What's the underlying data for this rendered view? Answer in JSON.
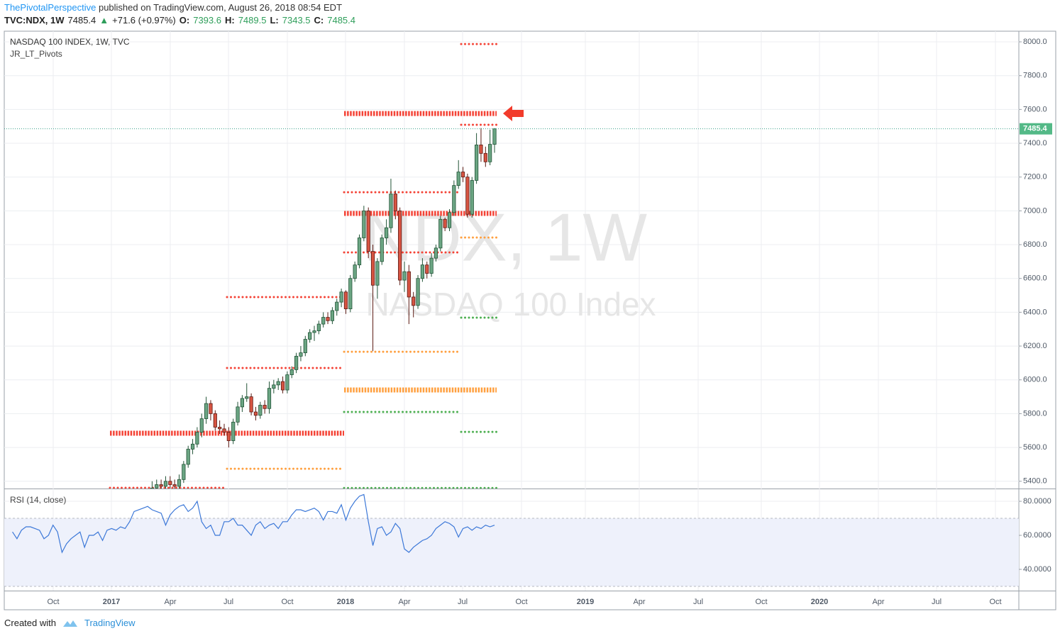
{
  "header": {
    "author": "ThePivotalPerspective",
    "published": "published on TradingView.com, August 26, 2018 08:54 EDT",
    "symbol": "TVC:NDX, 1W",
    "arrow": "▲",
    "change": "+71.6 (+0.97%)",
    "o_label": "O:",
    "h_label": "H:",
    "l_label": "L:",
    "c_label": "C:"
  },
  "footer": {
    "created": "Created with",
    "brand": "TradingView"
  },
  "chart_data": [
    {
      "type": "candlestick",
      "title": "NASDAQ 100 INDEX, 1W, TVC",
      "indicator": "JR_LT_Pivots",
      "watermark": "NDX, 1W",
      "watermark_subtitle": "NASDAQ 100 Index",
      "x_labels": [
        "Oct",
        "2017",
        "Apr",
        "Jul",
        "Oct",
        "2018",
        "Apr",
        "Jul",
        "Oct",
        "2019",
        "Apr",
        "Jul",
        "Oct",
        "2020",
        "Apr",
        "Jul",
        "Oct"
      ],
      "open": [
        5350,
        5360,
        5380,
        5370,
        5400,
        5380,
        5370,
        5410,
        5500,
        5590,
        5620,
        5690,
        5770,
        5860,
        5800,
        5720,
        5710,
        5690,
        5640,
        5750,
        5840,
        5890,
        5900,
        5810,
        5790,
        5850,
        5830,
        5950,
        5970,
        5990,
        5940,
        6030,
        6060,
        6140,
        6160,
        6240,
        6280,
        6290,
        6330,
        6370,
        6350,
        6410,
        6460,
        6520,
        6420,
        6600,
        6680,
        6840,
        7000,
        6760,
        6560,
        6700,
        6840,
        6900,
        7100,
        7000,
        6590,
        6640,
        6490,
        6440,
        6600,
        6680,
        6630,
        6720,
        6780,
        6950,
        6900,
        6990,
        7150,
        7230,
        7200,
        6980,
        7180,
        7390,
        7340,
        7290,
        7393.6
      ],
      "high": [
        5400,
        5410,
        5410,
        5430,
        5430,
        5410,
        5440,
        5520,
        5610,
        5650,
        5720,
        5800,
        5900,
        5880,
        5820,
        5760,
        5740,
        5720,
        5770,
        5870,
        5910,
        5980,
        5920,
        5840,
        5870,
        5880,
        5990,
        6000,
        6010,
        6020,
        6050,
        6080,
        6160,
        6200,
        6260,
        6300,
        6320,
        6350,
        6400,
        6400,
        6430,
        6480,
        6540,
        6530,
        6620,
        6700,
        6860,
        7030,
        7020,
        6800,
        6720,
        6860,
        6950,
        7190,
        7120,
        7020,
        6700,
        6680,
        6520,
        6620,
        6720,
        6700,
        6750,
        6800,
        6970,
        6960,
        7010,
        7180,
        7300,
        7260,
        7220,
        7200,
        7460,
        7490,
        7380,
        7480,
        7489.5
      ],
      "low": [
        5320,
        5330,
        5340,
        5340,
        5350,
        5340,
        5350,
        5390,
        5480,
        5560,
        5600,
        5660,
        5740,
        5760,
        5700,
        5680,
        5670,
        5600,
        5620,
        5730,
        5810,
        5870,
        5790,
        5760,
        5770,
        5800,
        5800,
        5920,
        5940,
        5920,
        5920,
        6010,
        6040,
        6110,
        6140,
        6220,
        6230,
        6270,
        6310,
        6330,
        6330,
        6380,
        6430,
        6390,
        6400,
        6580,
        6660,
        6820,
        6720,
        6170,
        6480,
        6680,
        6800,
        6870,
        6950,
        6560,
        6520,
        6330,
        6370,
        6420,
        6580,
        6600,
        6610,
        6700,
        6760,
        6880,
        6880,
        6970,
        7130,
        7170,
        6960,
        6960,
        7160,
        7290,
        7260,
        7270,
        7343.5
      ],
      "close": [
        5360,
        5380,
        5370,
        5400,
        5380,
        5370,
        5410,
        5500,
        5590,
        5620,
        5690,
        5770,
        5860,
        5800,
        5720,
        5710,
        5690,
        5640,
        5750,
        5840,
        5890,
        5900,
        5810,
        5790,
        5850,
        5830,
        5950,
        5970,
        5990,
        5940,
        6030,
        6060,
        6140,
        6160,
        6240,
        6280,
        6290,
        6330,
        6370,
        6350,
        6410,
        6460,
        6520,
        6420,
        6600,
        6680,
        6840,
        7000,
        6760,
        6560,
        6700,
        6840,
        6900,
        7100,
        7000,
        6590,
        6640,
        6490,
        6440,
        6600,
        6680,
        6630,
        6720,
        6780,
        6950,
        6900,
        6990,
        7150,
        7230,
        7200,
        6980,
        7180,
        7390,
        7340,
        7290,
        7393.6,
        7485.4
      ],
      "up_color": "#6ba583",
      "down_color": "#d75442",
      "last_price_color": "#53b987",
      "ylim": [
        5357,
        8063
      ],
      "yticks": [
        {
          "value": 5400,
          "label": "5400.0"
        },
        {
          "value": 5600,
          "label": "5600.0"
        },
        {
          "value": 5800,
          "label": "5800.0"
        },
        {
          "value": 6000,
          "label": "6000.0"
        },
        {
          "value": 6200,
          "label": "6200.0"
        },
        {
          "value": 6400,
          "label": "6400.0"
        },
        {
          "value": 6600,
          "label": "6600.0"
        },
        {
          "value": 6800,
          "label": "6800.0"
        },
        {
          "value": 7000,
          "label": "7000.0"
        },
        {
          "value": 7200,
          "label": "7200.0"
        },
        {
          "value": 7400,
          "label": "7400.0"
        },
        {
          "value": 7600,
          "label": "7600.0"
        },
        {
          "value": 7800,
          "label": "7800.0"
        },
        {
          "value": 8000,
          "label": "8000.0"
        }
      ],
      "grid": true,
      "pivots": [
        {
          "level": 5684,
          "color": "#f44336",
          "weight": "major"
        },
        {
          "level": 5361,
          "color": "#f44336",
          "weight": "minor"
        },
        {
          "level": 6490,
          "color": "#f44336",
          "weight": "minor"
        },
        {
          "level": 6070,
          "color": "#f44336",
          "weight": "minor"
        },
        {
          "level": 5474,
          "color": "#ffa040",
          "weight": "minor"
        },
        {
          "level": 7576,
          "color": "#f44336",
          "weight": "major"
        },
        {
          "level": 7110,
          "color": "#f44336",
          "weight": "minor"
        },
        {
          "level": 6985,
          "color": "#f44336",
          "weight": "major"
        },
        {
          "level": 6754,
          "color": "#f44336",
          "weight": "minor"
        },
        {
          "level": 6166,
          "color": "#ffa040",
          "weight": "minor"
        },
        {
          "level": 5940,
          "color": "#ffa040",
          "weight": "major"
        },
        {
          "level": 5810,
          "color": "#4caf50",
          "weight": "minor"
        },
        {
          "level": 5360,
          "color": "#4caf50",
          "weight": "minor"
        },
        {
          "level": 7987,
          "color": "#f44336",
          "weight": "minor"
        },
        {
          "level": 7509,
          "color": "#f44336",
          "weight": "minor"
        },
        {
          "level": 6842,
          "color": "#ffa040",
          "weight": "minor"
        },
        {
          "level": 6368,
          "color": "#4caf50",
          "weight": "minor"
        },
        {
          "level": 5692,
          "color": "#4caf50",
          "weight": "minor"
        }
      ]
    },
    {
      "type": "line",
      "title": "RSI (14, close)",
      "color": "#3c78d8",
      "values": [
        62,
        58,
        63,
        65,
        65,
        64,
        63,
        58,
        60,
        66,
        62,
        50,
        55,
        58,
        60,
        62,
        53,
        60,
        60,
        62,
        57,
        63,
        64,
        63,
        65,
        64,
        68,
        74,
        75,
        76,
        77,
        75,
        74,
        73,
        66,
        72,
        75,
        77,
        78,
        74,
        76,
        80,
        68,
        64,
        66,
        60,
        60,
        68,
        68,
        70,
        66,
        66,
        63,
        60,
        66,
        68,
        64,
        66,
        67,
        64,
        68,
        68,
        72,
        75,
        75,
        74,
        75,
        76,
        74,
        69,
        74,
        74,
        73,
        78,
        69,
        76,
        80,
        83,
        84,
        68,
        54,
        64,
        65,
        60,
        62,
        67,
        64,
        52,
        50,
        53,
        55,
        57,
        58,
        60,
        64,
        66,
        68,
        67,
        65,
        59,
        64,
        65,
        63,
        65,
        64,
        66,
        65,
        66
      ],
      "band": [
        30,
        70
      ],
      "band_color": "#eef1fb",
      "ylim": [
        27.5,
        87.1
      ],
      "yticks": [
        {
          "value": 40,
          "label": "40.0000"
        },
        {
          "value": 60,
          "label": "60.0000"
        },
        {
          "value": 80,
          "label": "80.0000"
        }
      ],
      "grid": true
    }
  ]
}
